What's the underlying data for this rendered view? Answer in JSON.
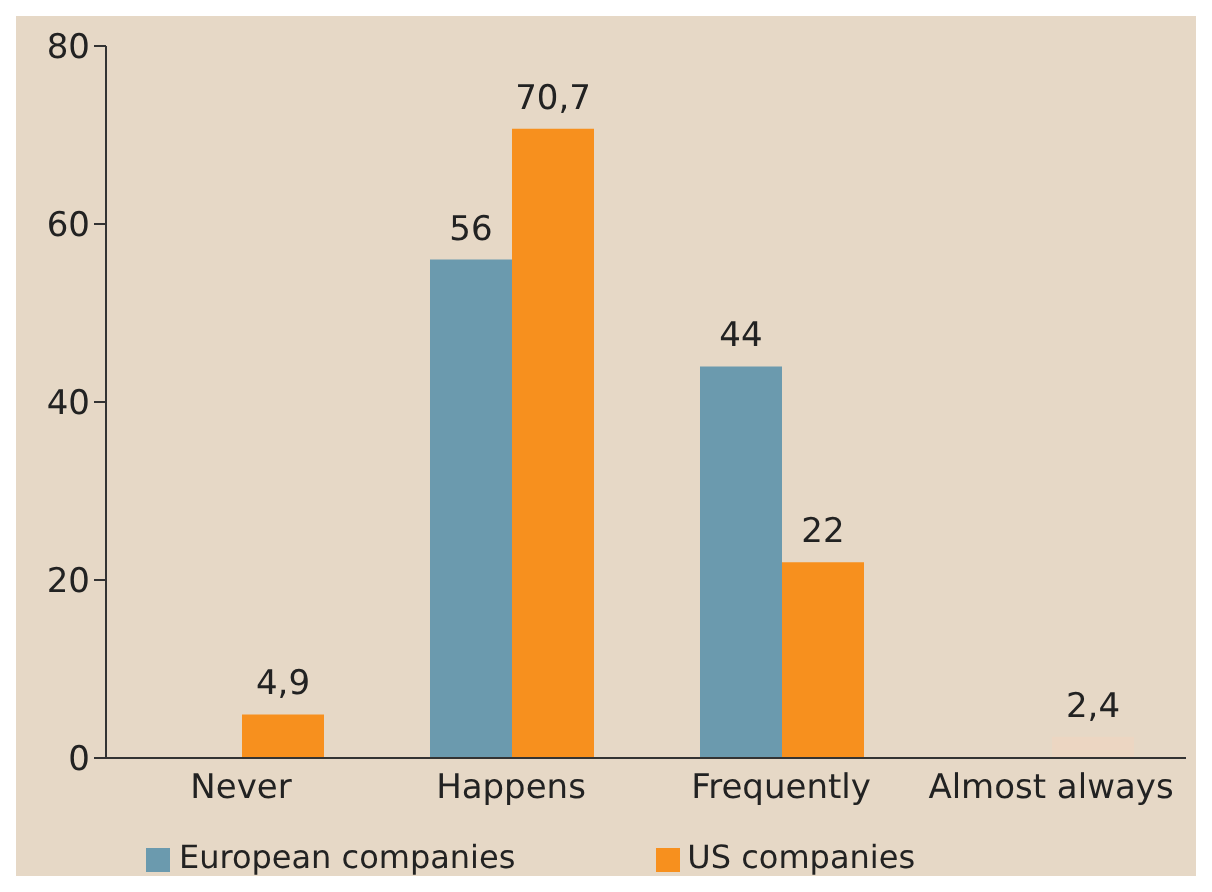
{
  "chart_data": {
    "type": "bar",
    "categories": [
      "Never",
      "Happens",
      "Frequently",
      "Almost always"
    ],
    "series": [
      {
        "name": "European companies",
        "color": "#6b9aae",
        "values": [
          null,
          56,
          44,
          null
        ],
        "value_labels": [
          null,
          "56",
          "44",
          null
        ]
      },
      {
        "name": "US companies",
        "color": "#f7901e",
        "colors": [
          "#f7901e",
          "#f7901e",
          "#f7901e",
          "#ecd6c2"
        ],
        "values": [
          4.9,
          70.7,
          22,
          2.4
        ],
        "value_labels": [
          "4,9",
          "70,7",
          "22",
          "2,4"
        ]
      }
    ],
    "ylim": [
      0,
      80
    ],
    "yticks": [
      0,
      20,
      40,
      60,
      80
    ],
    "legend": "bottom"
  }
}
